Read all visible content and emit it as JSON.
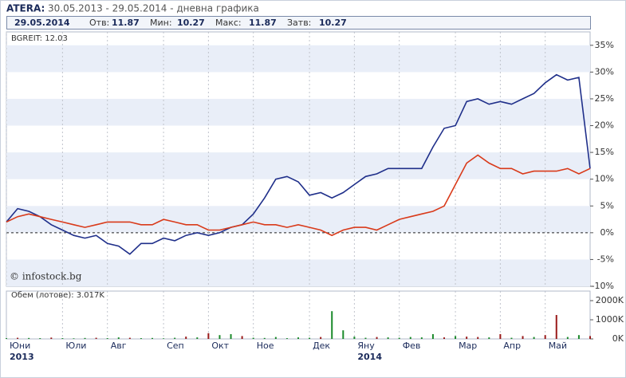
{
  "header": {
    "period": "30.05.2013 - 29.05.2014 - дневна графика",
    "quote": {
      "date": "29.05.2014",
      "open_label": "Отв:",
      "open": 11.87,
      "low_label": "Мин:",
      "low": 10.27,
      "high_label": "Макс:",
      "high": 11.87,
      "close_label": "Затв:",
      "close": 10.27
    },
    "watermark": "© infostock.bg"
  },
  "chart_data": [
    {
      "type": "line",
      "x": [
        "Юни",
        null,
        null,
        null,
        null,
        "Юли",
        null,
        null,
        null,
        "Авг",
        null,
        null,
        null,
        null,
        "Сеп",
        null,
        null,
        null,
        "Окт",
        null,
        null,
        null,
        "Ное",
        null,
        null,
        null,
        null,
        "Дек",
        null,
        null,
        null,
        "Яну",
        null,
        null,
        null,
        "Фев",
        null,
        null,
        null,
        null,
        "Мар",
        null,
        null,
        null,
        "Апр",
        null,
        null,
        null,
        "Май",
        null,
        null,
        null,
        null
      ],
      "x_sub": [
        "2013",
        null,
        null,
        null,
        null,
        null,
        null,
        null,
        null,
        null,
        null,
        null,
        null,
        null,
        null,
        null,
        null,
        null,
        null,
        null,
        null,
        null,
        null,
        null,
        null,
        null,
        null,
        null,
        null,
        null,
        null,
        "2014",
        null,
        null,
        null,
        null,
        null,
        null,
        null,
        null,
        null,
        null,
        null,
        null,
        null,
        null,
        null,
        null,
        null,
        null,
        null,
        null,
        null
      ],
      "series": [
        {
          "name": "ATERA:",
          "color": "#1f2f8a",
          "values": [
            2,
            4.5,
            4,
            3,
            1.5,
            0.5,
            -0.5,
            -1,
            -0.5,
            -2,
            -2.5,
            -4,
            -2,
            -2,
            -1,
            -1.5,
            -0.5,
            0,
            -0.5,
            0,
            1,
            1.5,
            3.5,
            6.5,
            10,
            10.5,
            9.5,
            7,
            7.5,
            6.5,
            7.5,
            9,
            10.5,
            11,
            12,
            12,
            12,
            12,
            16,
            19.5,
            20,
            24.5,
            25,
            24,
            24.5,
            24,
            25,
            26,
            28,
            29.5,
            28.5,
            29,
            12
          ]
        },
        {
          "name": "BGREIT: 12.03",
          "color": "#d93a1a",
          "values": [
            2,
            3,
            3.5,
            3,
            2.5,
            2,
            1.5,
            1,
            1.5,
            2,
            2,
            2,
            1.5,
            1.5,
            2.5,
            2,
            1.5,
            1.5,
            0.5,
            0.5,
            1,
            1.5,
            2,
            1.5,
            1.5,
            1,
            1.5,
            1,
            0.5,
            -0.5,
            0.5,
            1,
            1,
            0.5,
            1.5,
            2.5,
            3,
            3.5,
            4,
            5,
            9,
            13,
            14.5,
            13,
            12,
            12,
            11,
            11.5,
            11.5,
            11.5,
            12,
            11,
            12
          ]
        }
      ],
      "ylim": [
        -10,
        37.5
      ],
      "yticks": [
        {
          "value": 35,
          "label": "35%"
        },
        {
          "value": 30,
          "label": "30%"
        },
        {
          "value": 25,
          "label": "25%"
        },
        {
          "value": 20,
          "label": "20%"
        },
        {
          "value": 15,
          "label": "15%"
        },
        {
          "value": 10,
          "label": "10%"
        },
        {
          "value": 5,
          "label": "5%"
        },
        {
          "value": 0,
          "label": "0%"
        },
        {
          "value": -5,
          "label": "-5%"
        },
        {
          "value": -10,
          "label": "-10%"
        }
      ],
      "grid": true
    },
    {
      "type": "bar",
      "title": "Обем (лотове): 3.017K",
      "values": [
        40,
        60,
        50,
        40,
        70,
        40,
        30,
        50,
        60,
        40,
        80,
        60,
        40,
        50,
        30,
        60,
        120,
        80,
        300,
        200,
        250,
        150,
        60,
        50,
        100,
        40,
        80,
        60,
        100,
        1450,
        450,
        120,
        60,
        100,
        80,
        60,
        100,
        80,
        250,
        80,
        150,
        120,
        100,
        80,
        250,
        60,
        150,
        100,
        200,
        1250,
        100,
        200,
        150
      ],
      "colors": [
        "#1a8a2a",
        "#9a1a1a",
        "#1a8a2a",
        "#1a8a2a",
        "#9a1a1a",
        "#1a8a2a",
        "#1a8a2a",
        "#1a8a2a",
        "#9a1a1a",
        "#1a8a2a",
        "#1a8a2a",
        "#9a1a1a",
        "#1a8a2a",
        "#1a8a2a",
        "#1a8a2a",
        "#1a8a2a",
        "#9a1a1a",
        "#1a8a2a",
        "#9a1a1a",
        "#1a8a2a",
        "#1a8a2a",
        "#9a1a1a",
        "#1a8a2a",
        "#1a8a2a",
        "#1a8a2a",
        "#1a8a2a",
        "#1a8a2a",
        "#1a8a2a",
        "#9a1a1a",
        "#1a8a2a",
        "#1a8a2a",
        "#1a8a2a",
        "#1a8a2a",
        "#9a1a1a",
        "#1a8a2a",
        "#1a8a2a",
        "#1a8a2a",
        "#1a8a2a",
        "#1a8a2a",
        "#9a1a1a",
        "#1a8a2a",
        "#9a1a1a",
        "#9a1a1a",
        "#1a8a2a",
        "#9a1a1a",
        "#1a8a2a",
        "#9a1a1a",
        "#1a8a2a",
        "#9a1a1a",
        "#9a1a1a",
        "#1a8a2a",
        "#1a8a2a",
        "#9a1a1a"
      ],
      "ylim": [
        0,
        2500
      ],
      "yticks": [
        {
          "value": 2000,
          "label": "2000K"
        },
        {
          "value": 1000,
          "label": "1000K"
        },
        {
          "value": 0,
          "label": "0K"
        }
      ]
    }
  ]
}
